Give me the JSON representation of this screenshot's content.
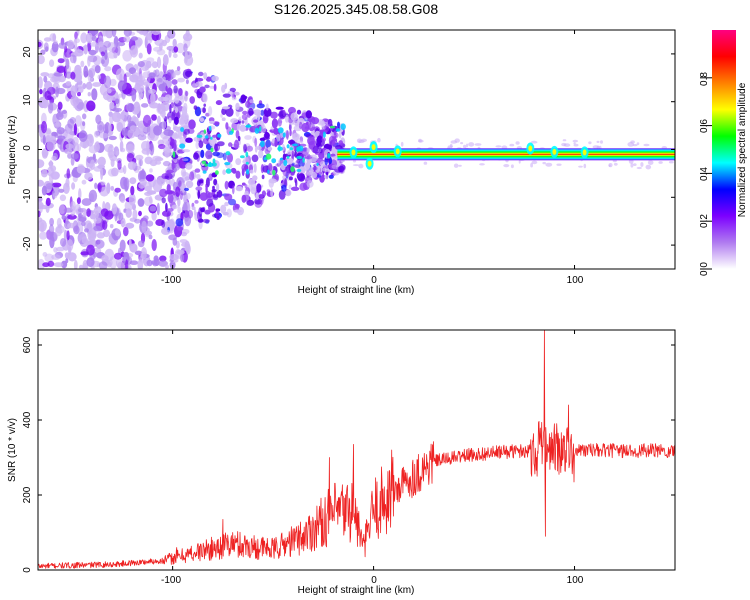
{
  "title": "S126.2025.345.08.58.G08",
  "chart_data": [
    {
      "type": "heatmap",
      "xlabel": "Height of straight line (km)",
      "ylabel": "Frequency (Hz)",
      "xlim": [
        -167,
        150
      ],
      "ylim": [
        -25,
        25
      ],
      "xticks": [
        "-100",
        "0",
        "100"
      ],
      "yticks": [
        "-20",
        "-10",
        "0",
        "10",
        "20"
      ],
      "ridge_frequency_hz": -1,
      "colorbar": {
        "label": "Normalized spectral amplitude",
        "range": [
          0,
          1
        ],
        "ticks": [
          "0.0",
          "0.2",
          "0.4",
          "0.6",
          "0.8"
        ],
        "colors": [
          "#ffffff",
          "#b07bf0",
          "#7c00ff",
          "#0000ff",
          "#00ffff",
          "#00ff00",
          "#ffff00",
          "#ff8000",
          "#ff0000",
          "#ff0080"
        ]
      }
    },
    {
      "type": "line",
      "xlabel": "Height of straight line (km)",
      "ylabel": "SNR (10 * v/v)",
      "xlim": [
        -167,
        150
      ],
      "ylim": [
        0,
        640
      ],
      "xticks": [
        "-100",
        "0",
        "100"
      ],
      "yticks": [
        "0",
        "200",
        "400",
        "600"
      ],
      "series": [
        {
          "name": "SNR",
          "color": "#ee2222",
          "envelope": [
            {
              "x": -167,
              "y": 10
            },
            {
              "x": -130,
              "y": 15
            },
            {
              "x": -105,
              "y": 25
            },
            {
              "x": -90,
              "y": 45
            },
            {
              "x": -70,
              "y": 70
            },
            {
              "x": -50,
              "y": 55
            },
            {
              "x": -35,
              "y": 90
            },
            {
              "x": -20,
              "y": 150
            },
            {
              "x": -10,
              "y": 160
            },
            {
              "x": -5,
              "y": 60
            },
            {
              "x": 0,
              "y": 160
            },
            {
              "x": 10,
              "y": 210
            },
            {
              "x": 20,
              "y": 250
            },
            {
              "x": 30,
              "y": 290
            },
            {
              "x": 45,
              "y": 305
            },
            {
              "x": 65,
              "y": 315
            },
            {
              "x": 80,
              "y": 320
            },
            {
              "x": 100,
              "y": 320
            },
            {
              "x": 120,
              "y": 318
            },
            {
              "x": 150,
              "y": 318
            }
          ],
          "peaks": [
            {
              "x": -98,
              "y": 60
            },
            {
              "x": -75,
              "y": 135
            },
            {
              "x": -40,
              "y": 110
            },
            {
              "x": -22,
              "y": 300
            },
            {
              "x": -10,
              "y": 335
            },
            {
              "x": 9,
              "y": 320
            },
            {
              "x": 85,
              "y": 640
            },
            {
              "x": 85.5,
              "y": 90
            },
            {
              "x": 90,
              "y": 390
            },
            {
              "x": 97,
              "y": 440
            }
          ]
        }
      ]
    }
  ]
}
